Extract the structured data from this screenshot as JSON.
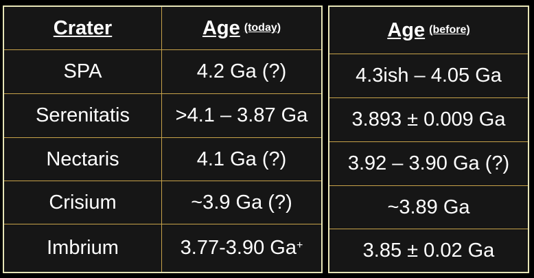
{
  "left_table": {
    "header": {
      "crater": "Crater",
      "age": "Age",
      "age_note": "(today)"
    },
    "rows": [
      {
        "crater": "SPA",
        "age": "4.2 Ga (?)",
        "sup": ""
      },
      {
        "crater": "Serenitatis",
        "age": ">4.1 – 3.87 Ga",
        "sup": ""
      },
      {
        "crater": "Nectaris",
        "age": "4.1 Ga (?)",
        "sup": ""
      },
      {
        "crater": "Crisium",
        "age": "~3.9 Ga (?)",
        "sup": ""
      },
      {
        "crater": "Imbrium",
        "age": "3.77-3.90 Ga",
        "sup": "+"
      }
    ]
  },
  "right_table": {
    "header": {
      "age": "Age",
      "age_note": "(before)"
    },
    "rows": [
      "4.3ish – 4.05 Ga",
      "3.893 ± 0.009 Ga",
      "3.92 – 3.90 Ga (?)",
      "~3.89 Ga",
      "3.85 ± 0.02 Ga"
    ]
  },
  "colors": {
    "background": "#000000",
    "cell_background": "#161616",
    "outer_border": "#e8e6b8",
    "grid_line": "#c8a34a",
    "text": "#ffffff"
  }
}
